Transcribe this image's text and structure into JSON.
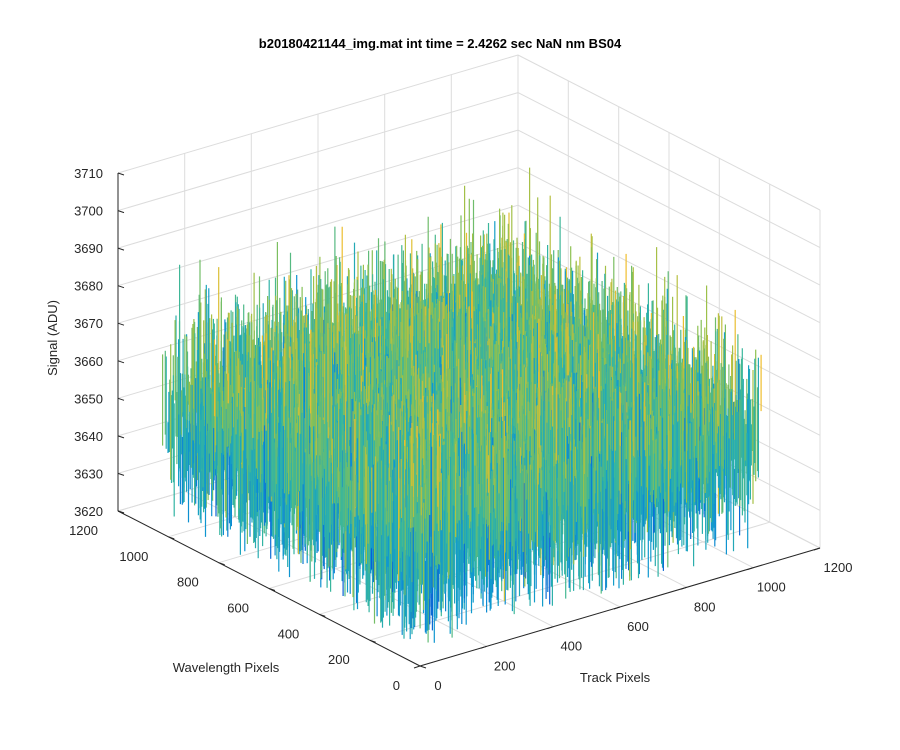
{
  "chart_data": {
    "type": "surface",
    "title": "b20180421144_img.mat int time = 2.4262 sec  NaN nm BS04",
    "xlabel": "Track Pixels",
    "ylabel": "Wavelength Pixels",
    "zlabel": "Signal (ADU)",
    "xlim": [
      0,
      1200
    ],
    "ylim": [
      0,
      1200
    ],
    "zlim": [
      3620,
      3710
    ],
    "x_ticks": [
      "0",
      "200",
      "400",
      "600",
      "800",
      "1000",
      "1200"
    ],
    "y_ticks": [
      "0",
      "200",
      "400",
      "600",
      "800",
      "1000",
      "1200"
    ],
    "z_ticks": [
      "3620",
      "3630",
      "3640",
      "3650",
      "3660",
      "3670",
      "3680",
      "3690",
      "3700",
      "3710"
    ],
    "data_extent": {
      "x": [
        1,
        1024
      ],
      "y": [
        1,
        1024
      ]
    },
    "signal_summary": {
      "mean": 3652,
      "min": 3625,
      "max": 3695
    },
    "grid": true,
    "colormap": "parula",
    "colors": {
      "low": "#0b5fd6",
      "mid_low": "#0f99d0",
      "mid": "#35b6a0",
      "mid_high": "#8fc14f",
      "high": "#f0be2e"
    }
  }
}
